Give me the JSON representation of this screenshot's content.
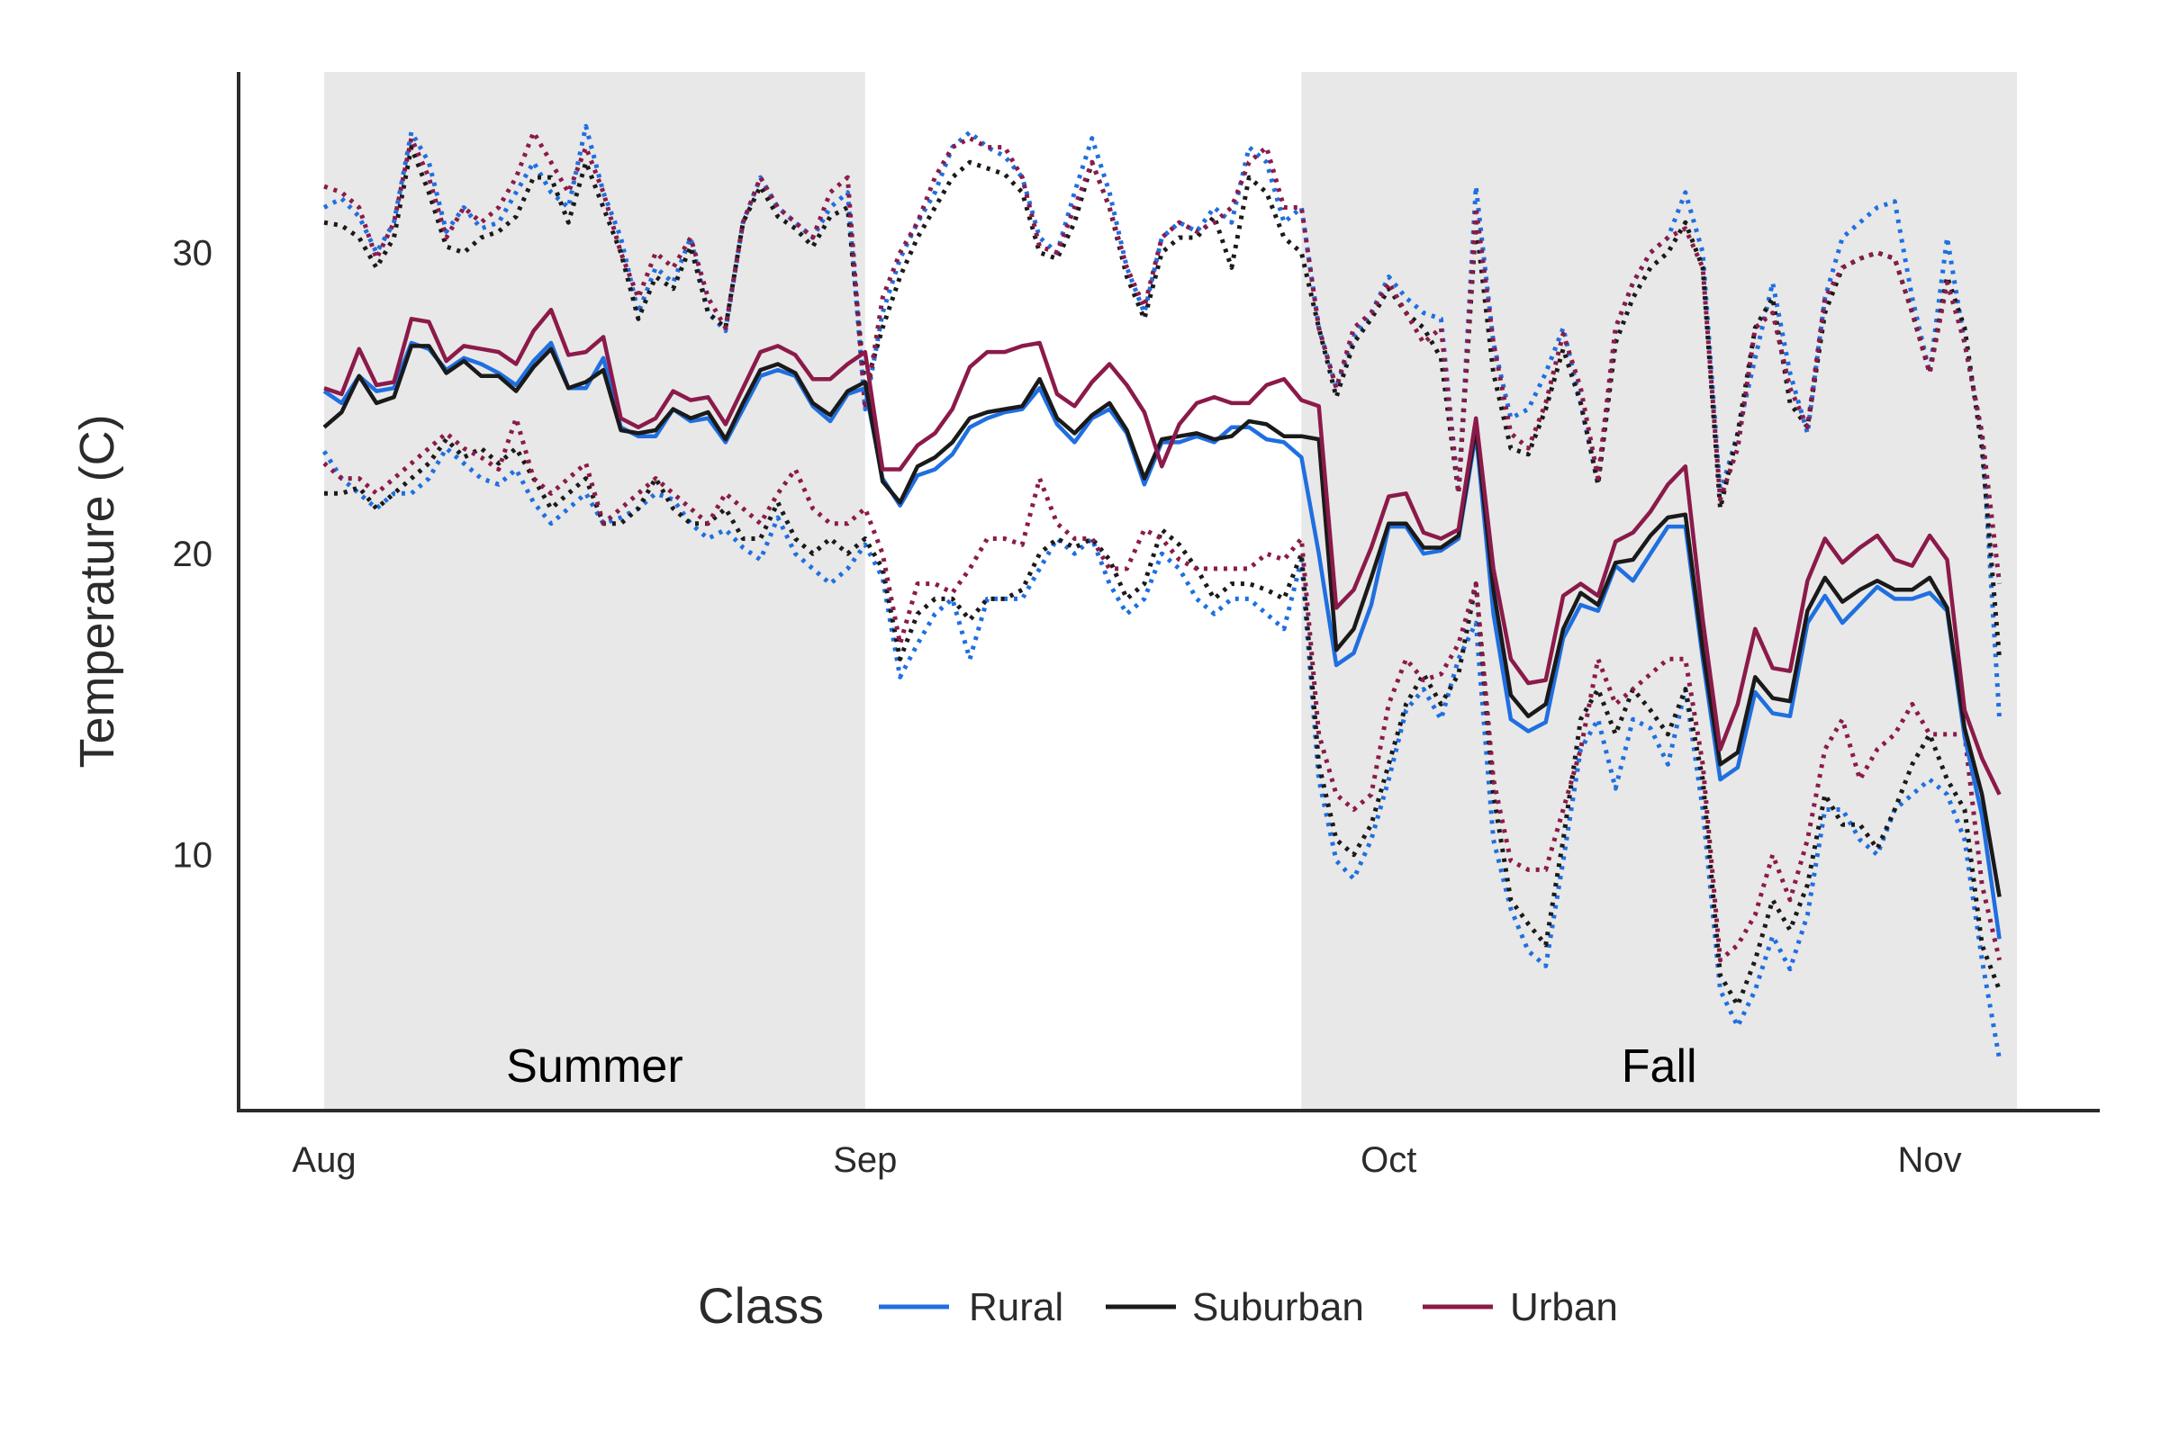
{
  "chart_data": {
    "type": "line",
    "ylabel": "Temperature (C)",
    "xlabel": "",
    "x_start": "2019-08-01",
    "x_end": "2019-11-06",
    "x_ticks": [
      {
        "label": "Aug",
        "date": "2019-08-01"
      },
      {
        "label": "Sep",
        "date": "2019-09-01"
      },
      {
        "label": "Oct",
        "date": "2019-10-01"
      },
      {
        "label": "Nov",
        "date": "2019-11-01"
      }
    ],
    "y_ticks": [
      10,
      20,
      30
    ],
    "ylim": [
      1.5,
      36
    ],
    "grid": false,
    "shaded_periods": [
      {
        "label": "Summer",
        "start": "2019-08-01",
        "end": "2019-09-01",
        "color": "#e8e8e8"
      },
      {
        "label": "Fall",
        "start": "2019-09-26",
        "end": "2019-11-06",
        "color": "#e8e8e8"
      }
    ],
    "legend": {
      "title": "Class",
      "position": "bottom"
    },
    "line_styles": {
      "mean": "solid",
      "max": "dotted",
      "min": "dotted"
    },
    "series": [
      {
        "name": "Rural",
        "color": "#1f6fe0",
        "mean": [
          25.4,
          25.0,
          25.9,
          25.4,
          25.5,
          27.0,
          26.8,
          26.1,
          26.5,
          26.3,
          26.0,
          25.6,
          26.4,
          27.0,
          25.5,
          25.5,
          26.5,
          24.2,
          23.9,
          23.9,
          24.8,
          24.4,
          24.5,
          23.7,
          24.8,
          25.9,
          26.1,
          25.9,
          24.9,
          24.4,
          25.3,
          25.5,
          22.5,
          21.6,
          22.6,
          22.8,
          23.3,
          24.2,
          24.5,
          24.7,
          24.8,
          25.5,
          24.3,
          23.7,
          24.5,
          24.8,
          24.0,
          22.3,
          23.7,
          23.7,
          23.9,
          23.7,
          24.2,
          24.2,
          23.8,
          23.7,
          23.2,
          20.0,
          16.3,
          16.7,
          18.3,
          20.9,
          20.9,
          20.0,
          20.1,
          20.5,
          24.0,
          18.0,
          14.5,
          14.1,
          14.4,
          17.2,
          18.3,
          18.1,
          19.6,
          19.1,
          20.0,
          20.9,
          20.9,
          16.5,
          12.5,
          12.9,
          15.4,
          14.7,
          14.6,
          17.7,
          18.6,
          17.7,
          18.3,
          18.9,
          18.5,
          18.5,
          18.7,
          18.1,
          13.9,
          11.3,
          7.2
        ],
        "max": [
          31.5,
          31.8,
          31.2,
          30.0,
          31.0,
          34.0,
          33.0,
          30.7,
          31.5,
          30.8,
          31.0,
          32.0,
          33.0,
          32.0,
          31.5,
          34.2,
          32.0,
          30.5,
          28.0,
          29.5,
          29.0,
          30.5,
          28.0,
          27.4,
          31.0,
          32.5,
          31.5,
          31.0,
          30.5,
          31.5,
          32.0,
          24.8,
          28.0,
          29.8,
          31.0,
          32.0,
          33.5,
          34.0,
          33.5,
          33.2,
          32.5,
          30.5,
          30.0,
          32.0,
          33.8,
          32.0,
          29.5,
          28.0,
          30.5,
          31.0,
          30.7,
          31.5,
          31.0,
          33.5,
          33.0,
          31.0,
          31.5,
          27.5,
          25.5,
          27.2,
          28.0,
          29.2,
          28.5,
          28.0,
          27.8,
          22.0,
          32.2,
          27.0,
          24.5,
          24.8,
          26.0,
          27.5,
          25.0,
          22.3,
          27.5,
          29.0,
          30.0,
          30.5,
          32.0,
          30.0,
          22.0,
          24.0,
          26.5,
          29.0,
          26.0,
          24.0,
          28.5,
          30.5,
          31.0,
          31.5,
          31.7,
          28.5,
          26.0,
          30.5,
          27.0,
          24.0,
          14.5
        ],
        "min": [
          23.4,
          22.5,
          22.0,
          21.5,
          22.0,
          22.0,
          22.5,
          23.5,
          23.0,
          22.5,
          22.3,
          22.8,
          21.7,
          21.0,
          21.5,
          22.0,
          21.0,
          21.2,
          21.5,
          22.0,
          21.8,
          21.0,
          20.5,
          20.8,
          20.2,
          19.8,
          21.2,
          20.0,
          19.5,
          19.0,
          19.5,
          20.3,
          19.2,
          15.9,
          17.0,
          18.0,
          18.5,
          16.5,
          18.5,
          18.5,
          18.5,
          19.5,
          20.5,
          20.0,
          20.5,
          19.0,
          18.0,
          18.5,
          20.0,
          19.5,
          18.5,
          18.0,
          18.5,
          18.5,
          18.0,
          17.5,
          19.8,
          12.5,
          9.8,
          9.2,
          10.5,
          12.5,
          14.8,
          15.5,
          14.5,
          16.5,
          17.7,
          10.5,
          8.2,
          6.8,
          6.3,
          9.8,
          13.5,
          14.5,
          12.2,
          14.5,
          14.2,
          13.0,
          15.5,
          11.5,
          5.5,
          4.3,
          5.5,
          7.3,
          6.2,
          8.0,
          11.5,
          11.5,
          10.5,
          10.0,
          11.5,
          12.0,
          12.5,
          12.0,
          10.5,
          6.5,
          3.2
        ]
      },
      {
        "name": "Suburban",
        "color": "#1a1a1a",
        "mean": [
          24.2,
          24.7,
          25.9,
          25.0,
          25.2,
          26.9,
          26.9,
          26.0,
          26.4,
          25.9,
          25.9,
          25.4,
          26.2,
          26.8,
          25.5,
          25.7,
          26.1,
          24.1,
          24.0,
          24.1,
          24.8,
          24.5,
          24.7,
          23.8,
          25.0,
          26.1,
          26.3,
          26.0,
          25.0,
          24.6,
          25.4,
          25.7,
          22.4,
          21.7,
          22.9,
          23.2,
          23.7,
          24.5,
          24.7,
          24.8,
          24.9,
          25.8,
          24.5,
          24.0,
          24.6,
          25.0,
          24.1,
          22.5,
          23.8,
          23.9,
          24.0,
          23.8,
          23.9,
          24.4,
          24.3,
          23.9,
          23.9,
          23.8,
          16.8,
          17.5,
          19.2,
          21.0,
          21.0,
          20.2,
          20.2,
          20.6,
          24.2,
          18.8,
          15.3,
          14.6,
          15.0,
          17.5,
          18.7,
          18.3,
          19.7,
          19.8,
          20.6,
          21.2,
          21.3,
          16.8,
          13.0,
          13.4,
          15.9,
          15.2,
          15.1,
          18.1,
          19.2,
          18.4,
          18.8,
          19.1,
          18.8,
          18.8,
          19.2,
          18.2,
          14.2,
          12.0,
          8.6
        ],
        "max": [
          31.0,
          30.9,
          30.5,
          29.5,
          30.5,
          33.5,
          32.0,
          30.2,
          30.0,
          30.5,
          30.7,
          31.2,
          32.5,
          32.5,
          31.0,
          33.0,
          31.5,
          30.0,
          27.8,
          29.2,
          28.8,
          30.2,
          28.0,
          27.5,
          31.0,
          32.2,
          31.2,
          30.8,
          30.2,
          31.2,
          31.5,
          25.5,
          27.5,
          29.2,
          30.5,
          31.5,
          32.5,
          33.0,
          32.8,
          32.6,
          32.0,
          30.0,
          29.8,
          31.0,
          33.0,
          31.5,
          29.2,
          27.8,
          30.0,
          30.5,
          30.5,
          31.2,
          29.5,
          32.5,
          32.0,
          30.5,
          30.0,
          27.5,
          25.2,
          27.0,
          27.8,
          28.8,
          28.0,
          27.5,
          26.5,
          22.0,
          31.0,
          26.0,
          23.5,
          23.3,
          24.8,
          26.8,
          25.0,
          22.3,
          27.0,
          28.5,
          29.5,
          30.0,
          31.0,
          29.5,
          21.5,
          24.0,
          27.5,
          28.5,
          25.0,
          24.2,
          28.0,
          29.5,
          29.8,
          30.0,
          29.8,
          28.0,
          26.0,
          29.2,
          27.5,
          23.5,
          16.5
        ],
        "min": [
          22.0,
          22.0,
          22.2,
          21.5,
          22.0,
          22.5,
          23.0,
          23.8,
          23.2,
          23.5,
          23.0,
          23.5,
          22.5,
          21.5,
          22.0,
          22.5,
          21.0,
          21.0,
          21.5,
          22.5,
          21.5,
          21.0,
          21.0,
          21.5,
          20.5,
          20.5,
          21.7,
          20.5,
          20.0,
          20.5,
          20.0,
          20.5,
          19.5,
          16.5,
          18.0,
          18.5,
          18.5,
          17.8,
          18.5,
          18.5,
          18.8,
          20.0,
          20.5,
          20.2,
          20.5,
          19.8,
          18.5,
          19.0,
          20.8,
          20.3,
          19.5,
          18.5,
          19.0,
          19.0,
          18.8,
          18.5,
          20.0,
          13.0,
          10.5,
          10.0,
          11.0,
          13.0,
          15.0,
          16.0,
          15.0,
          16.0,
          19.0,
          12.0,
          8.5,
          7.7,
          7.0,
          10.5,
          14.5,
          15.5,
          14.0,
          15.5,
          14.8,
          14.0,
          15.5,
          12.5,
          6.0,
          5.0,
          6.5,
          8.5,
          7.5,
          9.0,
          12.0,
          11.0,
          11.0,
          10.2,
          11.5,
          13.0,
          14.0,
          12.5,
          11.5,
          7.0,
          5.5
        ]
      },
      {
        "name": "Urban",
        "color": "#8b1a4a",
        "mean": [
          25.5,
          25.3,
          26.8,
          25.6,
          25.7,
          27.8,
          27.7,
          26.4,
          26.9,
          26.8,
          26.7,
          26.3,
          27.4,
          28.1,
          26.6,
          26.7,
          27.2,
          24.5,
          24.2,
          24.5,
          25.4,
          25.1,
          25.2,
          24.3,
          25.5,
          26.7,
          26.9,
          26.6,
          25.8,
          25.8,
          26.3,
          26.7,
          22.8,
          22.8,
          23.6,
          24.0,
          24.8,
          26.2,
          26.7,
          26.7,
          26.9,
          27.0,
          25.3,
          24.9,
          25.7,
          26.3,
          25.6,
          24.7,
          22.9,
          24.3,
          25.0,
          25.2,
          25.0,
          25.0,
          25.6,
          25.8,
          25.1,
          24.9,
          18.2,
          18.8,
          20.2,
          21.9,
          22.0,
          20.7,
          20.5,
          20.8,
          24.5,
          19.5,
          16.5,
          15.7,
          15.8,
          18.6,
          19.0,
          18.6,
          20.4,
          20.7,
          21.4,
          22.3,
          22.9,
          17.8,
          13.5,
          15.0,
          17.5,
          16.2,
          16.1,
          19.1,
          20.5,
          19.7,
          20.2,
          20.6,
          19.8,
          19.6,
          20.6,
          19.8,
          14.8,
          13.2,
          12.0
        ],
        "max": [
          32.2,
          32.0,
          31.5,
          29.8,
          31.0,
          33.8,
          32.5,
          30.5,
          31.5,
          31.0,
          31.5,
          32.5,
          34.0,
          33.0,
          32.0,
          33.5,
          32.0,
          30.0,
          28.5,
          30.0,
          29.5,
          30.5,
          28.5,
          27.5,
          31.0,
          32.5,
          31.5,
          31.0,
          30.5,
          32.0,
          32.5,
          24.8,
          28.5,
          30.0,
          31.0,
          32.5,
          33.5,
          33.8,
          33.5,
          33.5,
          32.5,
          30.2,
          30.0,
          31.5,
          33.0,
          31.5,
          29.5,
          28.2,
          30.5,
          31.0,
          30.7,
          31.0,
          31.5,
          33.0,
          33.5,
          31.5,
          31.5,
          27.5,
          25.5,
          27.5,
          28.0,
          29.0,
          28.0,
          27.0,
          27.5,
          22.0,
          31.5,
          27.0,
          24.0,
          23.5,
          25.0,
          27.3,
          25.5,
          22.5,
          27.5,
          29.0,
          30.0,
          30.5,
          30.8,
          29.5,
          21.8,
          23.5,
          27.5,
          28.0,
          25.5,
          24.2,
          28.5,
          29.5,
          29.8,
          30.0,
          29.8,
          28.0,
          26.0,
          29.0,
          27.0,
          24.0,
          19.0
        ],
        "min": [
          23.0,
          22.5,
          22.5,
          22.0,
          22.5,
          23.0,
          23.5,
          24.0,
          23.5,
          23.2,
          22.8,
          24.5,
          22.5,
          22.0,
          22.5,
          23.0,
          21.0,
          21.5,
          22.0,
          22.5,
          22.0,
          21.5,
          21.0,
          22.0,
          21.5,
          21.0,
          22.0,
          22.8,
          21.5,
          21.0,
          21.0,
          21.5,
          20.0,
          17.0,
          19.0,
          19.0,
          18.7,
          19.5,
          20.5,
          20.5,
          20.3,
          22.5,
          21.0,
          20.5,
          20.5,
          19.5,
          19.5,
          20.8,
          20.5,
          19.8,
          19.5,
          19.5,
          19.5,
          19.5,
          20.0,
          19.8,
          20.5,
          14.0,
          12.0,
          11.5,
          12.0,
          15.0,
          16.5,
          15.8,
          16.0,
          17.0,
          19.0,
          12.5,
          9.8,
          9.5,
          9.5,
          11.5,
          13.5,
          16.5,
          15.0,
          15.5,
          16.0,
          16.5,
          16.5,
          13.0,
          6.5,
          7.0,
          8.0,
          10.0,
          8.5,
          10.5,
          13.5,
          14.5,
          12.5,
          13.5,
          14.0,
          15.0,
          14.0,
          14.0,
          14.0,
          9.0,
          6.5
        ]
      }
    ]
  }
}
